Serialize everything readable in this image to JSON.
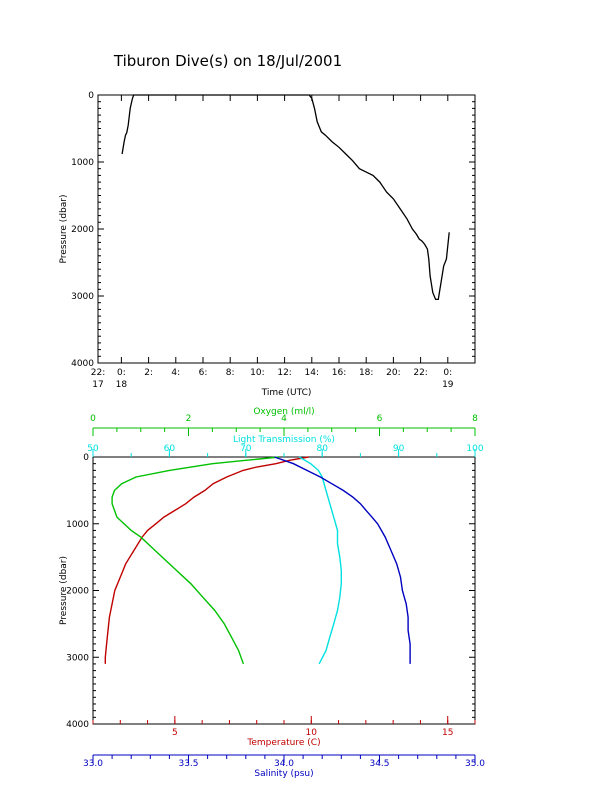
{
  "title": "Tiburon Dive(s) on 18/Jul/2001",
  "chart_data": [
    {
      "type": "line",
      "title": "Tiburon Dive(s) on 18/Jul/2001",
      "xlabel": "Time (UTC)",
      "ylabel": "Pressure (dbar)",
      "x_unit": "hours since 18 Jul 2001 00:00 UTC",
      "xlim": [
        -1.72,
        26.0
      ],
      "ylim": [
        4000,
        0
      ],
      "grid": false,
      "x_ticks": [
        {
          "x": -1.72,
          "line1": "22:",
          "line2": "17"
        },
        {
          "x": 0,
          "line1": "0:",
          "line2": "18"
        },
        {
          "x": 2,
          "line1": "2:",
          "line2": ""
        },
        {
          "x": 4,
          "line1": "4:",
          "line2": ""
        },
        {
          "x": 6,
          "line1": "6:",
          "line2": ""
        },
        {
          "x": 8,
          "line1": "8:",
          "line2": ""
        },
        {
          "x": 10,
          "line1": "10:",
          "line2": ""
        },
        {
          "x": 12,
          "line1": "12:",
          "line2": ""
        },
        {
          "x": 14,
          "line1": "14:",
          "line2": ""
        },
        {
          "x": 16,
          "line1": "16:",
          "line2": ""
        },
        {
          "x": 18,
          "line1": "18:",
          "line2": ""
        },
        {
          "x": 20,
          "line1": "20:",
          "line2": ""
        },
        {
          "x": 22,
          "line1": "22:",
          "line2": ""
        },
        {
          "x": 24,
          "line1": "0:",
          "line2": "19"
        }
      ],
      "y_ticks": [
        0,
        1000,
        2000,
        3000,
        4000
      ],
      "series": [
        {
          "color": "#000000",
          "x": [
            0.05,
            0.1,
            0.2,
            0.3,
            0.4,
            0.5,
            0.65,
            0.8,
            0.9,
            1.0,
            3.0,
            6.0,
            9.0,
            12.0,
            13.6,
            13.8,
            14.0,
            14.2,
            14.4,
            14.7,
            15.0,
            15.5,
            16.0,
            16.5,
            17.0,
            17.5,
            18.0,
            18.5,
            19.0,
            19.5,
            20.0,
            20.5,
            21.0,
            21.4,
            21.7,
            21.9,
            22.1,
            22.3,
            22.5,
            22.6,
            22.7,
            22.9,
            23.1,
            23.3,
            23.5,
            23.7,
            23.9,
            24.1
          ],
          "y": [
            880,
            820,
            700,
            600,
            560,
            450,
            200,
            60,
            0,
            0,
            0,
            0,
            0,
            0,
            0,
            0,
            50,
            200,
            400,
            550,
            600,
            700,
            780,
            880,
            980,
            1100,
            1150,
            1200,
            1300,
            1450,
            1550,
            1700,
            1850,
            2000,
            2080,
            2150,
            2180,
            2230,
            2300,
            2450,
            2700,
            2950,
            3050,
            3050,
            2800,
            2550,
            2450,
            2050
          ]
        }
      ]
    },
    {
      "type": "line",
      "ylabel": "Pressure (dbar)",
      "ylim": [
        4000,
        0
      ],
      "y_ticks": [
        0,
        1000,
        2000,
        3000,
        4000
      ],
      "grid": false,
      "axes": {
        "temperature": {
          "label": "Temperature (C)",
          "color": "#c00000",
          "position": "bottom",
          "range": [
            2.0,
            16.0
          ],
          "ticks": [
            5,
            10,
            15
          ]
        },
        "salinity": {
          "label": "Salinity (psu)",
          "color": "#0000c0",
          "position": "bottom-offset",
          "range": [
            33.0,
            35.0
          ],
          "ticks": [
            "33.0",
            "33.5",
            "34.0",
            "34.5",
            "35.0"
          ]
        },
        "oxygen": {
          "label": "Oxygen (ml/l)",
          "color": "#00c000",
          "position": "top",
          "range": [
            0,
            8
          ],
          "ticks": [
            0,
            2,
            4,
            6,
            8
          ]
        },
        "light": {
          "label": "Light Transmission (%)",
          "color": "#00e0e0",
          "position": "top-offset",
          "range": [
            50,
            100
          ],
          "ticks": [
            50,
            60,
            70,
            80,
            90,
            100
          ]
        }
      },
      "series": [
        {
          "axis": "temperature",
          "color": "#c00000",
          "pressure": [
            0,
            50,
            100,
            150,
            200,
            300,
            400,
            500,
            600,
            700,
            800,
            900,
            1000,
            1100,
            1200,
            1400,
            1600,
            1800,
            2000,
            2200,
            2400,
            2600,
            2800,
            3000,
            3100
          ],
          "values": [
            9.9,
            9.2,
            8.7,
            8.0,
            7.5,
            6.9,
            6.4,
            6.1,
            5.7,
            5.4,
            5.0,
            4.6,
            4.3,
            4.0,
            3.8,
            3.5,
            3.2,
            3.0,
            2.8,
            2.7,
            2.6,
            2.55,
            2.5,
            2.45,
            2.45
          ]
        },
        {
          "axis": "oxygen",
          "color": "#00c000",
          "pressure": [
            0,
            50,
            100,
            200,
            300,
            400,
            500,
            600,
            700,
            800,
            900,
            1000,
            1100,
            1200,
            1300,
            1400,
            1500,
            1700,
            1900,
            2100,
            2300,
            2500,
            2700,
            2900,
            3000,
            3100
          ],
          "values": [
            3.9,
            3.2,
            2.5,
            1.6,
            0.9,
            0.6,
            0.45,
            0.4,
            0.4,
            0.45,
            0.5,
            0.65,
            0.8,
            1.0,
            1.15,
            1.3,
            1.45,
            1.75,
            2.05,
            2.3,
            2.55,
            2.75,
            2.9,
            3.05,
            3.1,
            3.15
          ]
        },
        {
          "axis": "light",
          "color": "#00e0e0",
          "pressure": [
            0,
            100,
            200,
            300,
            500,
            700,
            900,
            1100,
            1300,
            1500,
            1700,
            1900,
            2100,
            2300,
            2500,
            2700,
            2900,
            3100
          ],
          "values": [
            77.0,
            78.5,
            79.5,
            80.0,
            80.5,
            81.0,
            81.5,
            82.0,
            82.0,
            82.3,
            82.5,
            82.5,
            82.3,
            82.0,
            81.5,
            81.0,
            80.5,
            79.6
          ]
        },
        {
          "axis": "salinity",
          "color": "#0000c0",
          "pressure": [
            0,
            100,
            200,
            300,
            400,
            500,
            600,
            700,
            800,
            900,
            1000,
            1100,
            1200,
            1400,
            1600,
            1800,
            2000,
            2200,
            2400,
            2600,
            2800,
            3000,
            3100
          ],
          "values": [
            33.95,
            34.05,
            34.12,
            34.19,
            34.25,
            34.31,
            34.36,
            34.4,
            34.43,
            34.46,
            34.49,
            34.51,
            34.53,
            34.56,
            34.59,
            34.61,
            34.62,
            34.64,
            34.65,
            34.65,
            34.66,
            34.66,
            34.66
          ]
        }
      ]
    }
  ]
}
